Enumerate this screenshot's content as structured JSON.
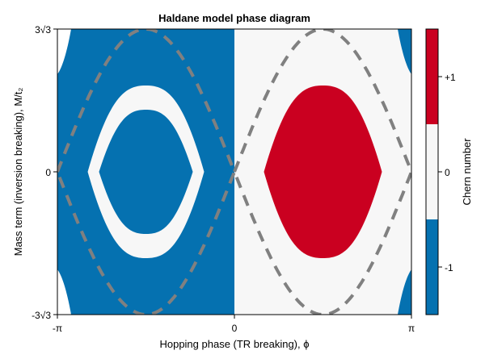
{
  "chart_data": {
    "type": "heatmap",
    "title": "Haldane model phase diagram",
    "xlabel": "Hopping phase (TR breaking), ϕ",
    "ylabel": "Mass term (inversion breaking), M/t₂",
    "colorbar_label": "Chern number",
    "x_range": [
      -3.14159,
      3.14159
    ],
    "y_range": [
      -5.196,
      5.196
    ],
    "x_ticks": [
      {
        "value": -3.14159,
        "label": "-π"
      },
      {
        "value": 0,
        "label": "0"
      },
      {
        "value": 3.14159,
        "label": "π"
      }
    ],
    "y_ticks": [
      {
        "value": -5.196,
        "label": "-3√3"
      },
      {
        "value": 0,
        "label": "0"
      },
      {
        "value": 5.196,
        "label": "3√3"
      }
    ],
    "colorbar_ticks": [
      {
        "value": -1,
        "label": "-1"
      },
      {
        "value": 0,
        "label": "0"
      },
      {
        "value": 1,
        "label": "+1"
      }
    ],
    "colorbar_range": [
      -1.5,
      1.5
    ],
    "colormap": [
      {
        "value": -1,
        "color": "#0571b0"
      },
      {
        "value": 0,
        "color": "#f7f7f7"
      },
      {
        "value": 1,
        "color": "#ca0020"
      }
    ],
    "phase_boundary": {
      "equation": "|M| = 3√3 · |sin ϕ|",
      "style": "dashed",
      "color": "#808080"
    },
    "regions": [
      {
        "phi_range": [
          -3.14159,
          0
        ],
        "background_chern": -1,
        "central_ring_chern": 0,
        "center_chern": -1
      },
      {
        "phi_range": [
          0,
          3.14159
        ],
        "background_chern": 0,
        "center_chern": 1
      }
    ],
    "legend_placement": "colorbar-right",
    "grid": false
  }
}
